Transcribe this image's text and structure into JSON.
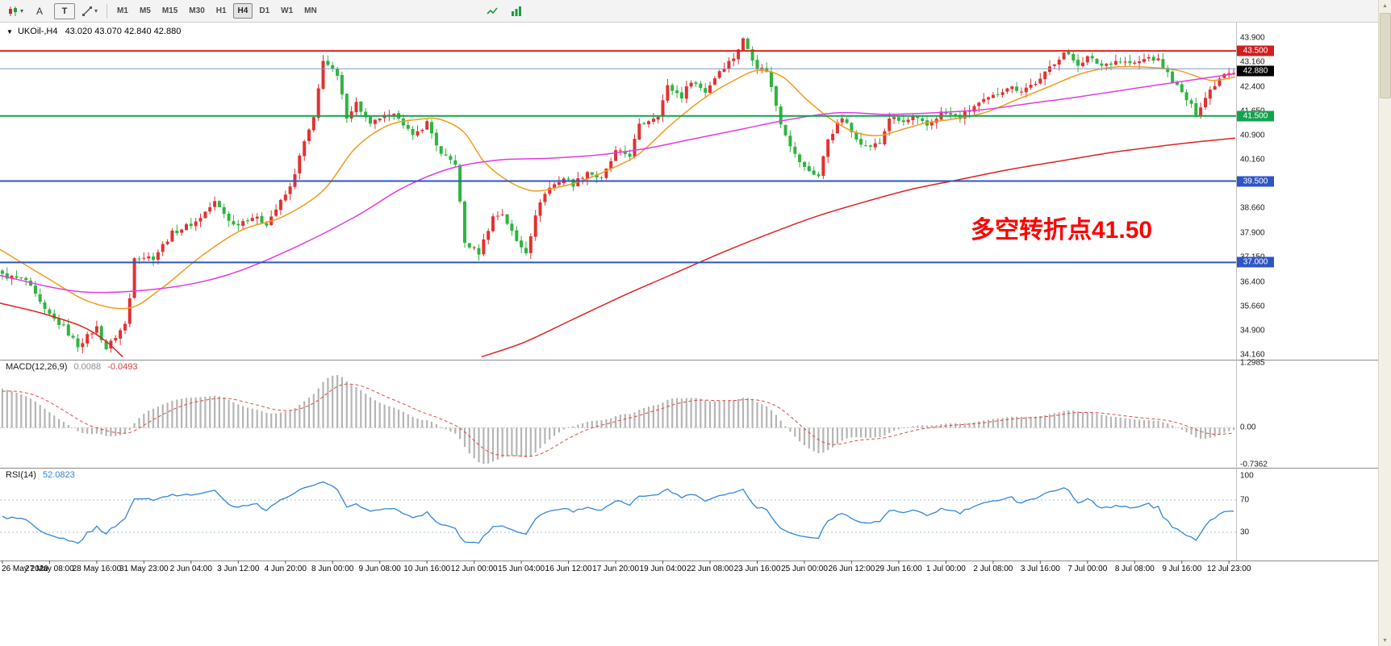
{
  "toolbar": {
    "tool_a": "A",
    "tool_t": "T",
    "icons": {
      "caret": "▾"
    },
    "timeframes": [
      "M1",
      "M5",
      "M15",
      "M30",
      "H1",
      "H4",
      "D1",
      "W1",
      "MN"
    ],
    "active_timeframe": "H4"
  },
  "chart": {
    "title": {
      "marker": "▼",
      "symbol_period": "UKOil-,H4",
      "ohlc": "43.020 43.070 42.840 42.880"
    },
    "annotation": {
      "text": "多空转折点41.50",
      "color": "#ff0000"
    },
    "price_axis_labels": [
      "43.900",
      "43.160",
      "42.400",
      "41.650",
      "40.900",
      "40.160",
      "38.660",
      "37.900",
      "37.150",
      "36.400",
      "35.660",
      "34.900",
      "34.160"
    ],
    "hlines": [
      {
        "price": 43.5,
        "color": "#e01f1f",
        "width": 2,
        "badge": "43.500",
        "badge_bg": "#d01f1f"
      },
      {
        "price": 42.95,
        "color": "#7b9cc4",
        "width": 1
      },
      {
        "price": 41.5,
        "color": "#12a34e",
        "width": 2,
        "badge": "41.500",
        "badge_bg": "#12a34e"
      },
      {
        "price": 39.5,
        "color": "#2e55c4",
        "width": 2,
        "badge": "39.500",
        "badge_bg": "#2e55c4"
      },
      {
        "price": 37.0,
        "color": "#2e55c4",
        "width": 2,
        "badge": "37.000",
        "badge_bg": "#2e55c4"
      }
    ],
    "current_price": {
      "label": "42.880",
      "value": 42.88,
      "badge_bg": "#000000"
    }
  },
  "chart_data": {
    "type": "candlestick",
    "symbol": "UKOil-",
    "period": "H4",
    "ohlc_display": {
      "open": "43.020",
      "high": "43.070",
      "low": "42.840",
      "close": "42.880"
    },
    "price_range": {
      "min": 34.16,
      "max": 43.9
    },
    "candles_count": 262,
    "candle_colors": {
      "up": "#e03232",
      "down": "#2eb440"
    },
    "close_anchors": [
      [
        0,
        36.6
      ],
      [
        5,
        36.45
      ],
      [
        9,
        35.5
      ],
      [
        13,
        35.0
      ],
      [
        16,
        34.45
      ],
      [
        20,
        35.0
      ],
      [
        22,
        34.35
      ],
      [
        26,
        35.1
      ],
      [
        27,
        35.9
      ],
      [
        28,
        37.2
      ],
      [
        32,
        37.15
      ],
      [
        36,
        37.9
      ],
      [
        41,
        38.25
      ],
      [
        45,
        38.85
      ],
      [
        49,
        38.15
      ],
      [
        53,
        38.4
      ],
      [
        56,
        38.2
      ],
      [
        61,
        39.3
      ],
      [
        64,
        40.7
      ],
      [
        66,
        41.4
      ],
      [
        68,
        43.25
      ],
      [
        71,
        42.7
      ],
      [
        73,
        41.5
      ],
      [
        75,
        41.9
      ],
      [
        78,
        41.2
      ],
      [
        80,
        41.45
      ],
      [
        84,
        41.5
      ],
      [
        87,
        40.85
      ],
      [
        90,
        41.3
      ],
      [
        93,
        40.3
      ],
      [
        96,
        40.05
      ],
      [
        98,
        37.6
      ],
      [
        101,
        37.3
      ],
      [
        104,
        38.4
      ],
      [
        106,
        38.5
      ],
      [
        109,
        37.65
      ],
      [
        111,
        37.35
      ],
      [
        114,
        38.9
      ],
      [
        116,
        39.3
      ],
      [
        119,
        39.6
      ],
      [
        121,
        39.4
      ],
      [
        124,
        39.8
      ],
      [
        127,
        39.55
      ],
      [
        130,
        40.4
      ],
      [
        133,
        40.3
      ],
      [
        135,
        41.2
      ],
      [
        139,
        41.55
      ],
      [
        141,
        42.4
      ],
      [
        144,
        42.1
      ],
      [
        146,
        42.6
      ],
      [
        149,
        42.25
      ],
      [
        152,
        42.9
      ],
      [
        155,
        43.3
      ],
      [
        157,
        43.85
      ],
      [
        160,
        43.0
      ],
      [
        162,
        42.9
      ],
      [
        165,
        41.3
      ],
      [
        168,
        40.3
      ],
      [
        170,
        39.9
      ],
      [
        173,
        39.65
      ],
      [
        175,
        40.8
      ],
      [
        178,
        41.45
      ],
      [
        180,
        41.0
      ],
      [
        183,
        40.55
      ],
      [
        186,
        40.65
      ],
      [
        188,
        41.45
      ],
      [
        191,
        41.3
      ],
      [
        193,
        41.45
      ],
      [
        196,
        41.2
      ],
      [
        199,
        41.6
      ],
      [
        203,
        41.45
      ],
      [
        206,
        41.8
      ],
      [
        210,
        42.1
      ],
      [
        213,
        42.4
      ],
      [
        216,
        42.3
      ],
      [
        220,
        42.6
      ],
      [
        222,
        43.0
      ],
      [
        225,
        43.45
      ],
      [
        228,
        43.1
      ],
      [
        230,
        43.3
      ],
      [
        233,
        43.05
      ],
      [
        236,
        43.2
      ],
      [
        240,
        43.1
      ],
      [
        243,
        43.3
      ],
      [
        245,
        43.2
      ],
      [
        248,
        42.6
      ],
      [
        251,
        42.0
      ],
      [
        253,
        41.6
      ],
      [
        256,
        42.3
      ],
      [
        259,
        42.85
      ],
      [
        261,
        42.88
      ]
    ],
    "moving_averages": {
      "orange": {
        "color": "#f29b1d",
        "points": [
          [
            0,
            37.4
          ],
          [
            60,
            36.5
          ],
          [
            110,
            35.8
          ],
          [
            160,
            35.6
          ],
          [
            200,
            36.2
          ],
          [
            250,
            37.2
          ],
          [
            300,
            38.0
          ],
          [
            350,
            38.4
          ],
          [
            400,
            39.2
          ],
          [
            440,
            40.5
          ],
          [
            480,
            41.2
          ],
          [
            520,
            41.4
          ],
          [
            545,
            41.4
          ],
          [
            575,
            41.0
          ],
          [
            600,
            40.1
          ],
          [
            630,
            39.5
          ],
          [
            660,
            39.2
          ],
          [
            690,
            39.3
          ],
          [
            720,
            39.5
          ],
          [
            750,
            39.8
          ],
          [
            790,
            40.3
          ],
          [
            830,
            41.2
          ],
          [
            870,
            42.0
          ],
          [
            910,
            42.6
          ],
          [
            940,
            42.9
          ],
          [
            970,
            42.7
          ],
          [
            1000,
            42.0
          ],
          [
            1030,
            41.4
          ],
          [
            1060,
            41.0
          ],
          [
            1090,
            40.9
          ],
          [
            1120,
            41.1
          ],
          [
            1150,
            41.3
          ],
          [
            1180,
            41.4
          ],
          [
            1220,
            41.6
          ],
          [
            1260,
            42.0
          ],
          [
            1300,
            42.4
          ],
          [
            1340,
            42.8
          ],
          [
            1380,
            43.0
          ],
          [
            1420,
            43.0
          ],
          [
            1460,
            42.9
          ],
          [
            1500,
            42.6
          ],
          [
            1531,
            42.7
          ]
        ]
      },
      "magenta": {
        "color": "#e23ae2",
        "points": [
          [
            0,
            36.6
          ],
          [
            100,
            36.1
          ],
          [
            200,
            36.2
          ],
          [
            280,
            36.6
          ],
          [
            360,
            37.4
          ],
          [
            440,
            38.4
          ],
          [
            500,
            39.3
          ],
          [
            560,
            39.9
          ],
          [
            620,
            40.15
          ],
          [
            680,
            40.2
          ],
          [
            740,
            40.3
          ],
          [
            800,
            40.5
          ],
          [
            860,
            40.8
          ],
          [
            920,
            41.1
          ],
          [
            980,
            41.4
          ],
          [
            1040,
            41.6
          ],
          [
            1100,
            41.55
          ],
          [
            1160,
            41.6
          ],
          [
            1220,
            41.7
          ],
          [
            1280,
            41.9
          ],
          [
            1340,
            42.1
          ],
          [
            1420,
            42.4
          ],
          [
            1531,
            42.8
          ]
        ]
      },
      "red": {
        "color": "#dd2222",
        "segments": [
          [
            [
              0,
              35.75
            ],
            [
              50,
              35.45
            ],
            [
              100,
              35.05
            ],
            [
              130,
              34.6
            ],
            [
              152,
              34.1
            ]
          ],
          [
            [
              597,
              34.1
            ],
            [
              650,
              34.55
            ],
            [
              710,
              35.25
            ],
            [
              770,
              35.95
            ],
            [
              830,
              36.6
            ],
            [
              890,
              37.25
            ],
            [
              950,
              37.85
            ],
            [
              1010,
              38.4
            ],
            [
              1070,
              38.85
            ],
            [
              1130,
              39.25
            ],
            [
              1190,
              39.55
            ],
            [
              1250,
              39.85
            ],
            [
              1310,
              40.1
            ],
            [
              1370,
              40.35
            ],
            [
              1430,
              40.55
            ],
            [
              1490,
              40.72
            ],
            [
              1531,
              40.82
            ]
          ]
        ]
      }
    }
  },
  "macd": {
    "name": "MACD(12,26,9)",
    "value_main": "0.0088",
    "value_signal": "-0.0493",
    "axis": {
      "max": "1.2985",
      "zero": "0.00",
      "min": "-0.7362"
    },
    "range": {
      "max": 1.2985,
      "min": -0.7362
    },
    "histogram_color": "#b5b5b5",
    "signal_color": "#e04848"
  },
  "rsi": {
    "name": "RSI(14)",
    "value": "52.0823",
    "axis": [
      "100",
      "70",
      "30"
    ],
    "levels": [
      70,
      30
    ],
    "line_color": "#2f87d8"
  },
  "time_axis": {
    "ticks": [
      "26 May 2020",
      "27 May 08:00",
      "28 May 16:00",
      "31 May 23:00",
      "2 Jun 04:00",
      "3 Jun 12:00",
      "4 Jun 20:00",
      "8 Jun 00:00",
      "9 Jun 08:00",
      "10 Jun 16:00",
      "12 Jun 00:00",
      "15 Jun 04:00",
      "16 Jun 12:00",
      "17 Jun 20:00",
      "19 Jun 04:00",
      "22 Jun 08:00",
      "23 Jun 16:00",
      "25 Jun 00:00",
      "26 Jun 12:00",
      "29 Jun 16:00",
      "1 Jul 00:00",
      "2 Jul 08:00",
      "3 Jul 16:00",
      "7 Jul 00:00",
      "8 Jul 08:00",
      "9 Jul 16:00",
      "12 Jul 23:00"
    ]
  },
  "scrollbar": {
    "up_glyph": "▲",
    "down_glyph": "▼"
  }
}
